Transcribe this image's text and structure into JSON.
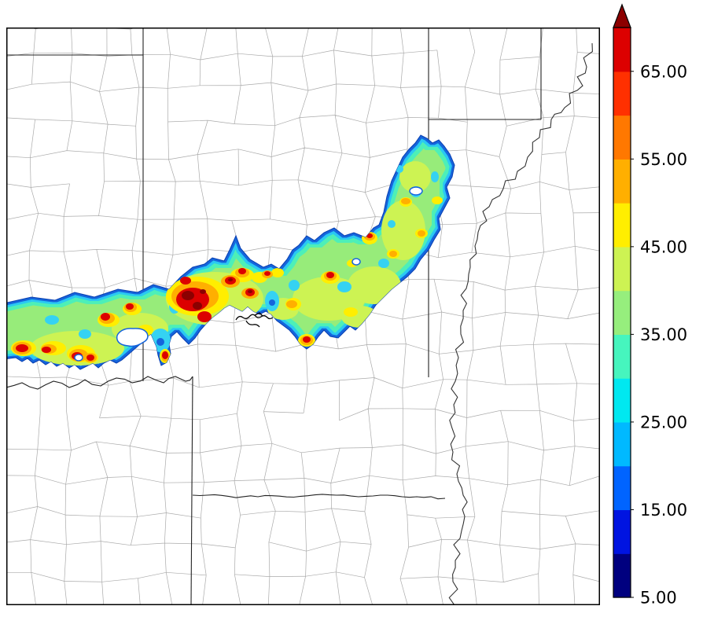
{
  "page": {
    "background": "#ffffff"
  },
  "colorbar": {
    "orientation": "vertical",
    "min": 5,
    "max": 70,
    "step": 5,
    "tick_values": [
      5,
      15,
      25,
      35,
      45,
      55,
      65
    ],
    "tick_labels": [
      "5.00",
      "15.00",
      "25.00",
      "35.00",
      "45.00",
      "55.00",
      "65.00"
    ],
    "colors": [
      "#00007F",
      "#0014E1",
      "#0064FF",
      "#00B9FF",
      "#00E8F0",
      "#46F5BE",
      "#96EE7D",
      "#CDF353",
      "#FFEE00",
      "#FFAF00",
      "#FF7800",
      "#FF3000",
      "#DC0000"
    ],
    "over_color": "#8C0000",
    "outline_color": "#000000",
    "label_color": "#000000"
  },
  "chart_data": {
    "type": "heatmap",
    "title": "",
    "xlabel": "",
    "ylabel": "",
    "legend_position": "right",
    "levels": [
      5,
      10,
      15,
      20,
      25,
      30,
      35,
      40,
      45,
      50,
      55,
      60,
      65,
      70
    ],
    "palette": [
      "#00007F",
      "#0014E1",
      "#0064FF",
      "#00B9FF",
      "#00E8F0",
      "#46F5BE",
      "#96EE7D",
      "#CDF353",
      "#FFEE00",
      "#FFAF00",
      "#FF7800",
      "#FF3000",
      "#DC0000"
    ],
    "over_color": "#8C0000",
    "colorbar_tick_labels": [
      "5.00",
      "15.00",
      "25.00",
      "35.00",
      "45.00",
      "55.00",
      "65.00"
    ],
    "basemap": "county and state boundaries with meandering river",
    "field_description": "Sinuous filled-contour band stretching from the west edge of the map northeastward into a broad lobe; interior mostly 35-45 (green/yellow-green) with embedded 45-70 cores (yellow-orange-red), strongest dark-red cores in the west-central part of the band; background below 5 is blank white."
  },
  "map": {
    "county_line_color": "#9b9b9b",
    "state_border_color": "#222222",
    "river_color": "#333333",
    "frame_color": "#000000"
  }
}
